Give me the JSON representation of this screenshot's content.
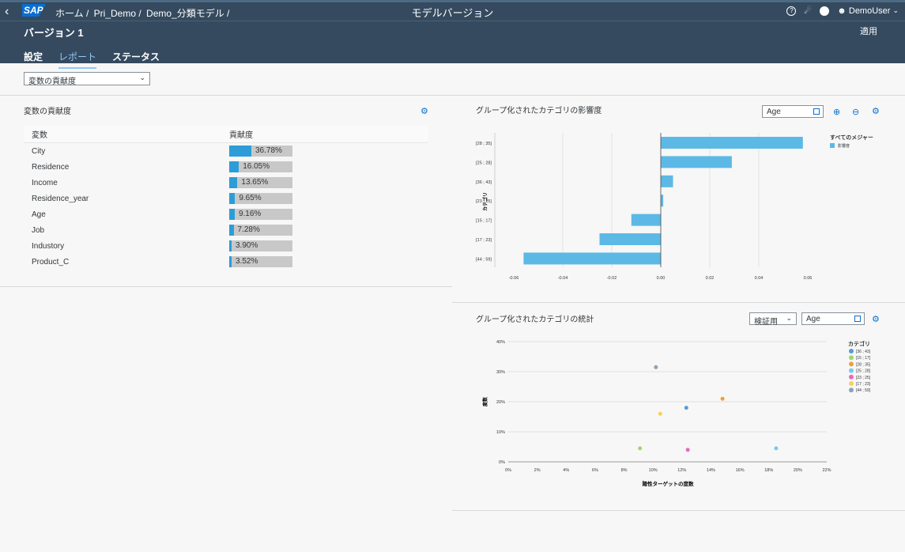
{
  "shell": {
    "breadcrumbs": [
      "ホーム /",
      "Pri_Demo /",
      "Demo_分類モデル /"
    ],
    "app_title": "モデルバージョン",
    "user": "DemoUser",
    "version_title": "バージョン 1",
    "apply_label": "適用",
    "tabs": [
      "設定",
      "レポート",
      "ステータス"
    ]
  },
  "variable_select": {
    "value": "変数の貢献度"
  },
  "contribution": {
    "title": "変数の貢献度",
    "headers": [
      "変数",
      "貢献度"
    ],
    "rows": [
      {
        "name": "City",
        "label": "36.78%",
        "value": 36.78
      },
      {
        "name": "Residence",
        "label": "16.05%",
        "value": 16.05
      },
      {
        "name": "Income",
        "label": "13.65%",
        "value": 13.65
      },
      {
        "name": "Residence_year",
        "label": "9.65%",
        "value": 9.65
      },
      {
        "name": "Age",
        "label": "9.16%",
        "value": 9.16
      },
      {
        "name": "Job",
        "label": "7.28%",
        "value": 7.28
      },
      {
        "name": "Industory",
        "label": "3.90%",
        "value": 3.9
      },
      {
        "name": "Product_C",
        "label": "3.52%",
        "value": 3.52
      }
    ]
  },
  "influence": {
    "title": "グループ化されたカテゴリの影響度",
    "variable": "Age",
    "ylabel": "カテゴリ",
    "legend_title": "すべてのメジャー",
    "legend_item": "影響度",
    "color": "#5cb9e6"
  },
  "stats": {
    "title": "グループ化されたカテゴリの統計",
    "dataset": "検証用",
    "variable": "Age",
    "ylabel": "度数",
    "xlabel": "陽性ターゲットの度数",
    "legend_title": "カテゴリ"
  },
  "chart_data": [
    {
      "type": "bar",
      "orientation": "horizontal",
      "categories": [
        "[28 ; 35]",
        "[25 ; 28]",
        "[36 ; 43]",
        "[23 ; 25]",
        "[15 ; 17]",
        "[17 ; 23]",
        "[44 ; 59]"
      ],
      "values": [
        0.058,
        0.029,
        0.005,
        0.001,
        -0.012,
        -0.025,
        -0.056
      ],
      "xlim": [
        -0.06,
        0.06
      ],
      "xticks": [
        "-0.06",
        "-0.04",
        "-0.02",
        "0.00",
        "0.02",
        "0.04",
        "0.06"
      ],
      "ylabel": "カテゴリ",
      "legend": [
        "影響度"
      ],
      "grid": true
    },
    {
      "type": "scatter",
      "ylabel": "度数",
      "xlabel": "陽性ターゲットの度数",
      "xlim": [
        0,
        22
      ],
      "ylim": [
        0,
        40
      ],
      "xticks": [
        "0%",
        "2%",
        "4%",
        "6%",
        "8%",
        "10%",
        "12%",
        "14%",
        "16%",
        "18%",
        "20%",
        "22%"
      ],
      "yticks": [
        "0%",
        "10%",
        "20%",
        "30%",
        "40%"
      ],
      "series": [
        {
          "name": "[36 ; 43]",
          "color": "#5899da",
          "x": 12.3,
          "y": 18
        },
        {
          "name": "[15 ; 17]",
          "color": "#a1d56d",
          "x": 9.1,
          "y": 4.5
        },
        {
          "name": "[28 ; 35]",
          "color": "#e8a33c",
          "x": 14.8,
          "y": 21
        },
        {
          "name": "[25 ; 28]",
          "color": "#79c9f2",
          "x": 18.5,
          "y": 4.5
        },
        {
          "name": "[23 ; 25]",
          "color": "#e86bb8",
          "x": 12.4,
          "y": 4
        },
        {
          "name": "[17 ; 23]",
          "color": "#f5d25c",
          "x": 10.5,
          "y": 16
        },
        {
          "name": "[44 ; 59]",
          "color": "#8ca3b8",
          "x": 10.2,
          "y": 31.5
        }
      ],
      "grid": true
    }
  ]
}
